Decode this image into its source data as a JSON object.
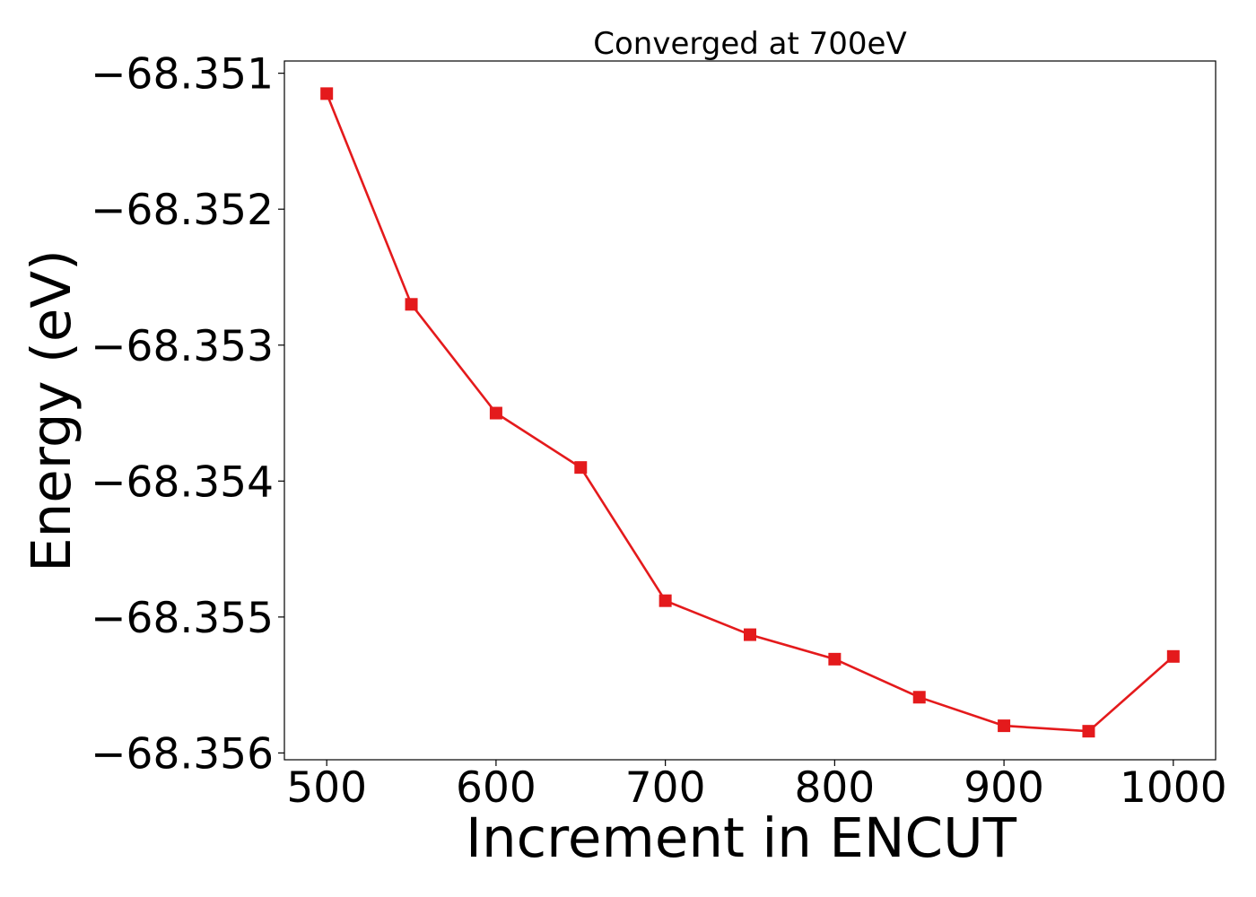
{
  "chart_data": {
    "type": "line",
    "title": "Converged at 700eV",
    "xlabel": "Increment in ENCUT",
    "ylabel": "Energy (eV)",
    "xlim": [
      475,
      1025
    ],
    "ylim": [
      -68.35605,
      -68.35091
    ],
    "xticks": [
      500,
      600,
      700,
      800,
      900,
      1000
    ],
    "xtick_labels": [
      "500",
      "600",
      "700",
      "800",
      "900",
      "1000"
    ],
    "yticks": [
      -68.351,
      -68.352,
      -68.353,
      -68.354,
      -68.355,
      -68.356
    ],
    "ytick_labels": [
      "−68.351",
      "−68.352",
      "−68.353",
      "−68.354",
      "−68.355",
      "−68.356"
    ],
    "grid": false,
    "series": [
      {
        "name": "Energy",
        "color": "#e41a1c",
        "marker": "square",
        "x": [
          500,
          550,
          600,
          650,
          700,
          750,
          800,
          850,
          900,
          950,
          1000
        ],
        "y": [
          -68.35115,
          -68.3527,
          -68.3535,
          -68.3539,
          -68.35488,
          -68.35513,
          -68.35531,
          -68.35559,
          -68.3558,
          -68.35584,
          -68.35529
        ]
      }
    ]
  }
}
